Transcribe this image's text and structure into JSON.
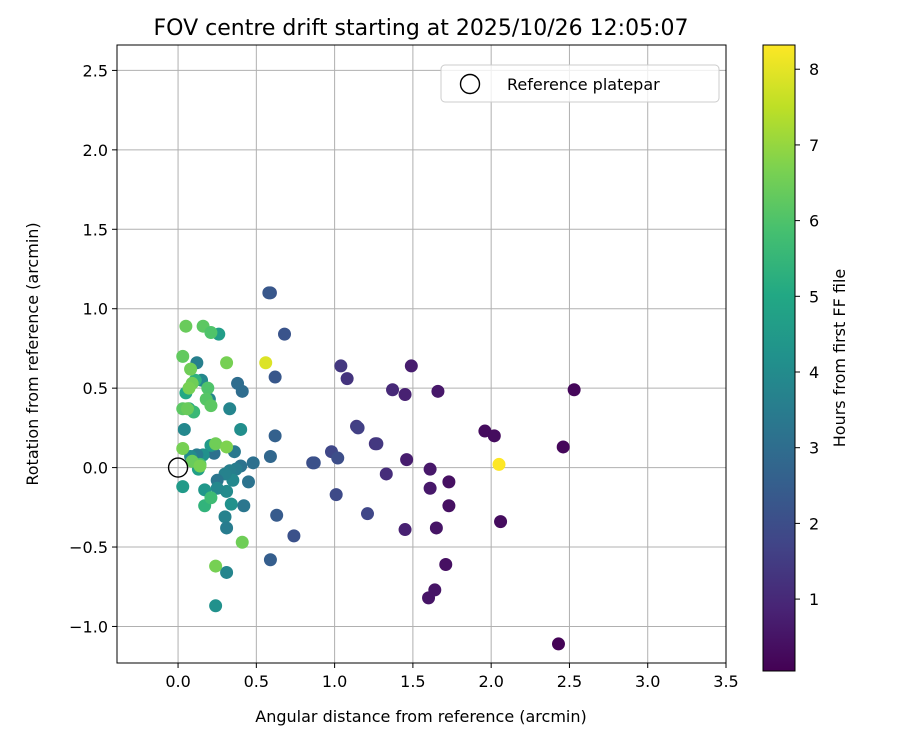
{
  "chart_data": {
    "type": "scatter",
    "title": "FOV centre drift starting at 2025/10/26 12:05:07",
    "xlabel": "Angular distance from reference (arcmin)",
    "ylabel": "Rotation from reference (arcmin)",
    "xlim": [
      -0.39,
      3.5
    ],
    "ylim": [
      -1.23,
      2.66
    ],
    "xticks": [
      0.0,
      0.5,
      1.0,
      1.5,
      2.0,
      2.5,
      3.0,
      3.5
    ],
    "xtick_labels": [
      "0.0",
      "0.5",
      "1.0",
      "1.5",
      "2.0",
      "2.5",
      "3.0",
      "3.5"
    ],
    "yticks": [
      -1.0,
      -0.5,
      0.0,
      0.5,
      1.0,
      1.5,
      2.0,
      2.5
    ],
    "ytick_labels": [
      "−1.0",
      "−0.5",
      "0.0",
      "0.5",
      "1.0",
      "1.5",
      "2.0",
      "2.5"
    ],
    "grid": true,
    "legend": {
      "position": "upper-right",
      "entries": [
        "Reference platepar"
      ]
    },
    "reference_point": {
      "x": 0.0,
      "y": 0.0,
      "label": "Reference platepar"
    },
    "colorbar": {
      "label": "Hours from first FF file",
      "colormap": "viridis",
      "range": [
        0.05,
        8.32
      ],
      "ticks": [
        1,
        2,
        3,
        4,
        5,
        6,
        7,
        8
      ],
      "tick_labels": [
        "1",
        "2",
        "3",
        "4",
        "5",
        "6",
        "7",
        "8"
      ]
    },
    "points": [
      {
        "x": 2.43,
        "y": -1.11,
        "c": 0.1
      },
      {
        "x": 2.46,
        "y": 0.13,
        "c": 0.2
      },
      {
        "x": 2.53,
        "y": 0.49,
        "c": 0.2
      },
      {
        "x": 2.06,
        "y": -0.34,
        "c": 0.3
      },
      {
        "x": 1.96,
        "y": 0.23,
        "c": 0.3
      },
      {
        "x": 2.02,
        "y": 0.2,
        "c": 0.3
      },
      {
        "x": 1.71,
        "y": -0.61,
        "c": 0.4
      },
      {
        "x": 1.73,
        "y": -0.09,
        "c": 0.4
      },
      {
        "x": 1.73,
        "y": -0.24,
        "c": 0.4
      },
      {
        "x": 1.64,
        "y": -0.77,
        "c": 0.5
      },
      {
        "x": 1.6,
        "y": -0.82,
        "c": 0.5
      },
      {
        "x": 1.65,
        "y": -0.38,
        "c": 0.5
      },
      {
        "x": 1.66,
        "y": 0.48,
        "c": 0.6
      },
      {
        "x": 1.61,
        "y": -0.13,
        "c": 0.6
      },
      {
        "x": 1.61,
        "y": -0.01,
        "c": 0.6
      },
      {
        "x": 1.49,
        "y": 0.64,
        "c": 0.7
      },
      {
        "x": 1.46,
        "y": 0.05,
        "c": 0.7
      },
      {
        "x": 1.45,
        "y": -0.39,
        "c": 0.8
      },
      {
        "x": 1.45,
        "y": 0.46,
        "c": 0.8
      },
      {
        "x": 1.37,
        "y": 0.49,
        "c": 1.0
      },
      {
        "x": 1.33,
        "y": -0.04,
        "c": 1.1
      },
      {
        "x": 1.26,
        "y": 0.15,
        "c": 1.3
      },
      {
        "x": 1.27,
        "y": 0.15,
        "c": 1.4
      },
      {
        "x": 1.14,
        "y": 0.26,
        "c": 1.5
      },
      {
        "x": 1.15,
        "y": 0.25,
        "c": 1.6
      },
      {
        "x": 1.08,
        "y": 0.56,
        "c": 1.3
      },
      {
        "x": 1.04,
        "y": 0.64,
        "c": 1.4
      },
      {
        "x": 1.21,
        "y": -0.29,
        "c": 1.8
      },
      {
        "x": 0.98,
        "y": 0.1,
        "c": 1.8
      },
      {
        "x": 1.01,
        "y": -0.17,
        "c": 1.9
      },
      {
        "x": 1.02,
        "y": 0.06,
        "c": 2.0
      },
      {
        "x": 0.86,
        "y": 0.03,
        "c": 2.0
      },
      {
        "x": 0.87,
        "y": 0.03,
        "c": 2.1
      },
      {
        "x": 0.74,
        "y": -0.43,
        "c": 2.1
      },
      {
        "x": 0.68,
        "y": 0.84,
        "c": 2.2
      },
      {
        "x": 0.59,
        "y": 1.1,
        "c": 2.2
      },
      {
        "x": 0.58,
        "y": 1.1,
        "c": 2.3
      },
      {
        "x": 0.62,
        "y": 0.57,
        "c": 2.3
      },
      {
        "x": 0.63,
        "y": -0.3,
        "c": 2.4
      },
      {
        "x": 0.59,
        "y": -0.58,
        "c": 2.5
      },
      {
        "x": 0.62,
        "y": 0.2,
        "c": 2.6
      },
      {
        "x": 0.59,
        "y": 0.07,
        "c": 2.8
      },
      {
        "x": 0.48,
        "y": 0.03,
        "c": 3.1
      },
      {
        "x": 0.45,
        "y": -0.09,
        "c": 3.2
      },
      {
        "x": 0.42,
        "y": -0.24,
        "c": 3.3
      },
      {
        "x": 0.41,
        "y": 0.48,
        "c": 3.0
      },
      {
        "x": 0.38,
        "y": 0.53,
        "c": 3.0
      },
      {
        "x": 0.4,
        "y": 0.01,
        "c": 3.2
      },
      {
        "x": 0.37,
        "y": -0.01,
        "c": 3.5
      },
      {
        "x": 0.36,
        "y": 0.1,
        "c": 3.4
      },
      {
        "x": 0.33,
        "y": -0.02,
        "c": 3.6
      },
      {
        "x": 0.35,
        "y": -0.08,
        "c": 3.9
      },
      {
        "x": 0.33,
        "y": 0.37,
        "c": 3.8
      },
      {
        "x": 0.3,
        "y": -0.04,
        "c": 3.7
      },
      {
        "x": 0.31,
        "y": -0.15,
        "c": 4.0
      },
      {
        "x": 0.34,
        "y": -0.23,
        "c": 4.2
      },
      {
        "x": 0.3,
        "y": -0.31,
        "c": 3.7
      },
      {
        "x": 0.31,
        "y": -0.38,
        "c": 3.5
      },
      {
        "x": 0.31,
        "y": -0.66,
        "c": 3.8
      },
      {
        "x": 0.4,
        "y": 0.24,
        "c": 4.1
      },
      {
        "x": 0.25,
        "y": -0.08,
        "c": 3.3
      },
      {
        "x": 0.25,
        "y": -0.13,
        "c": 3.9
      },
      {
        "x": 0.24,
        "y": -0.87,
        "c": 4.2
      },
      {
        "x": 0.26,
        "y": 0.84,
        "c": 4.6
      },
      {
        "x": 0.23,
        "y": 0.09,
        "c": 3.1
      },
      {
        "x": 0.21,
        "y": 0.14,
        "c": 4.5
      },
      {
        "x": 0.2,
        "y": 0.43,
        "c": 3.8
      },
      {
        "x": 0.17,
        "y": -0.14,
        "c": 4.4
      },
      {
        "x": 0.16,
        "y": 0.08,
        "c": 4.2
      },
      {
        "x": 0.15,
        "y": 0.55,
        "c": 3.9
      },
      {
        "x": 0.12,
        "y": 0.66,
        "c": 3.6
      },
      {
        "x": 0.12,
        "y": 0.08,
        "c": 3.5
      },
      {
        "x": 0.13,
        "y": -0.01,
        "c": 4.7
      },
      {
        "x": 0.17,
        "y": -0.24,
        "c": 5.4
      },
      {
        "x": 0.21,
        "y": -0.19,
        "c": 5.7
      },
      {
        "x": 0.08,
        "y": 0.07,
        "c": 4.0
      },
      {
        "x": 0.04,
        "y": 0.24,
        "c": 3.9
      },
      {
        "x": 0.03,
        "y": -0.12,
        "c": 4.5
      },
      {
        "x": 0.05,
        "y": 0.47,
        "c": 5.0
      },
      {
        "x": 0.07,
        "y": 0.37,
        "c": 4.9
      },
      {
        "x": 0.1,
        "y": 0.35,
        "c": 5.6
      },
      {
        "x": 0.11,
        "y": 0.55,
        "c": 5.3
      },
      {
        "x": 0.14,
        "y": 0.02,
        "c": 5.8
      },
      {
        "x": 0.19,
        "y": 0.5,
        "c": 6.0
      },
      {
        "x": 0.18,
        "y": 0.43,
        "c": 6.1
      },
      {
        "x": 0.21,
        "y": 0.39,
        "c": 6.2
      },
      {
        "x": 0.16,
        "y": 0.89,
        "c": 6.2
      },
      {
        "x": 0.21,
        "y": 0.85,
        "c": 6.0
      },
      {
        "x": 0.05,
        "y": 0.89,
        "c": 6.4
      },
      {
        "x": 0.03,
        "y": 0.7,
        "c": 6.3
      },
      {
        "x": 0.08,
        "y": 0.62,
        "c": 6.5
      },
      {
        "x": 0.09,
        "y": 0.53,
        "c": 6.5
      },
      {
        "x": 0.07,
        "y": 0.5,
        "c": 6.6
      },
      {
        "x": 0.03,
        "y": 0.37,
        "c": 6.2
      },
      {
        "x": 0.06,
        "y": 0.37,
        "c": 6.4
      },
      {
        "x": 0.03,
        "y": 0.12,
        "c": 6.6
      },
      {
        "x": 0.09,
        "y": 0.04,
        "c": 6.4
      },
      {
        "x": 0.14,
        "y": 0.01,
        "c": 6.6
      },
      {
        "x": 0.24,
        "y": 0.15,
        "c": 6.5
      },
      {
        "x": 0.31,
        "y": 0.13,
        "c": 6.7
      },
      {
        "x": 0.31,
        "y": 0.66,
        "c": 6.6
      },
      {
        "x": 0.41,
        "y": -0.47,
        "c": 6.5
      },
      {
        "x": 0.24,
        "y": -0.62,
        "c": 6.6
      },
      {
        "x": 0.56,
        "y": 0.66,
        "c": 7.9
      },
      {
        "x": 2.05,
        "y": 0.02,
        "c": 8.32
      }
    ]
  }
}
